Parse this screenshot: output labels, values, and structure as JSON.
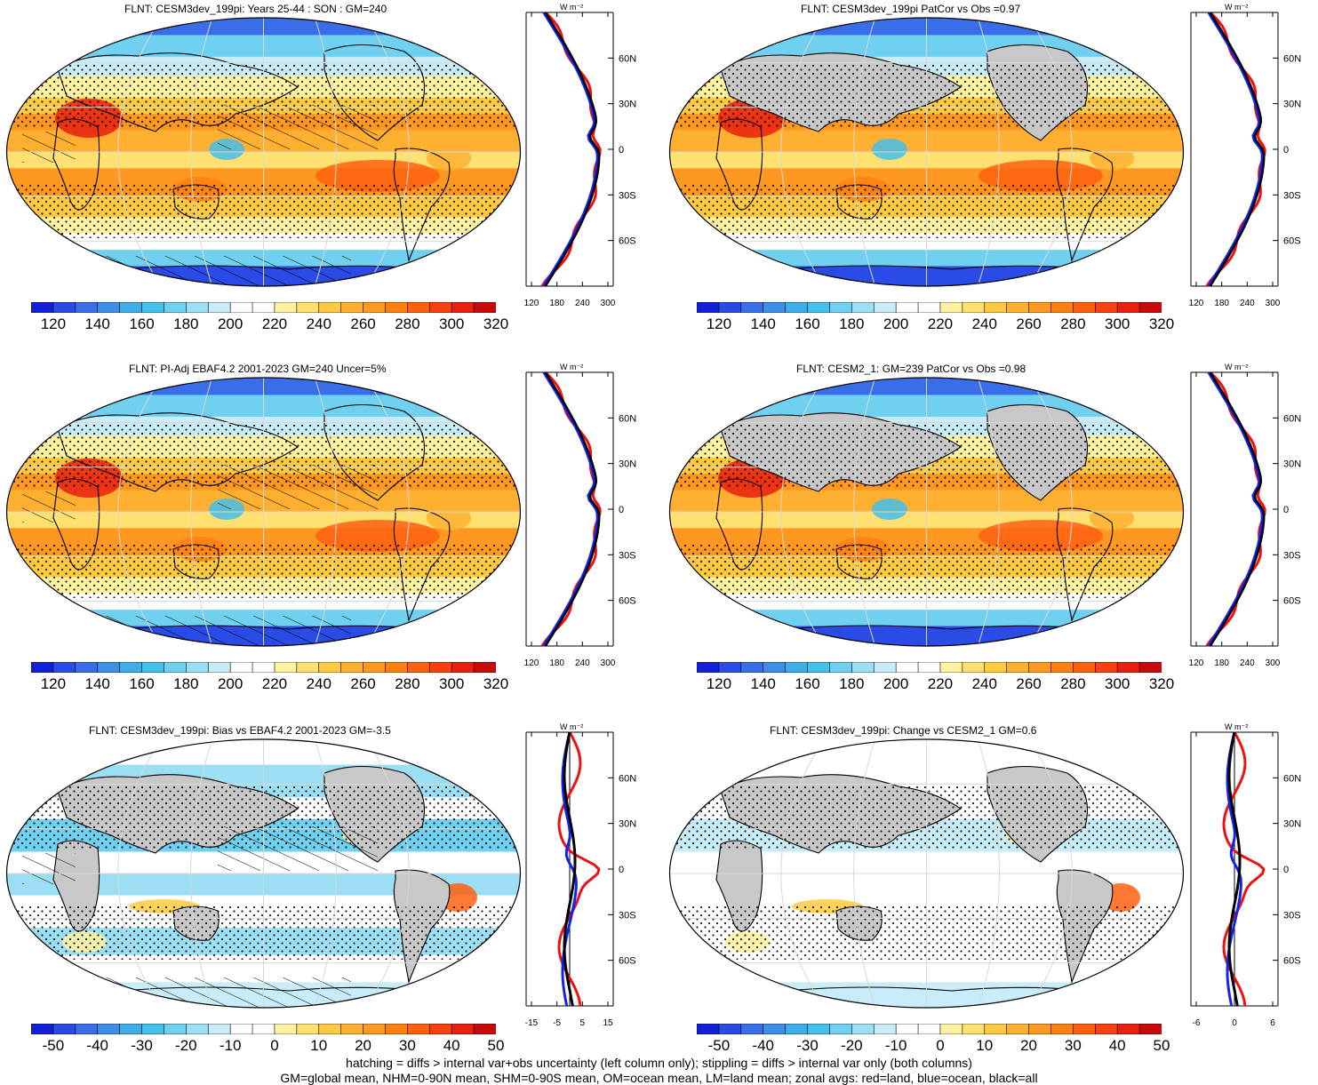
{
  "panels": [
    {
      "title": "FLNT: CESM3dev_199pi: Years 25-44 : SON : GM=240",
      "kind": "abs",
      "colorbar_labels": [
        "120",
        "140",
        "160",
        "180",
        "200",
        "220",
        "240",
        "260",
        "280",
        "300",
        "320"
      ],
      "zonal_xticks": [
        "120",
        "180",
        "240",
        "300"
      ]
    },
    {
      "title": "FLNT: CESM3dev_199pi PatCor vs Obs =0.97",
      "kind": "abs",
      "colorbar_labels": [
        "120",
        "140",
        "160",
        "180",
        "200",
        "220",
        "240",
        "260",
        "280",
        "300",
        "320"
      ],
      "zonal_xticks": [
        "120",
        "180",
        "240",
        "300"
      ]
    },
    {
      "title": "FLNT: PI-Adj EBAF4.2 2001-2023 GM=240 Uncer=5%",
      "kind": "abs",
      "colorbar_labels": [
        "120",
        "140",
        "160",
        "180",
        "200",
        "220",
        "240",
        "260",
        "280",
        "300",
        "320"
      ],
      "zonal_xticks": [
        "120",
        "180",
        "240",
        "300"
      ]
    },
    {
      "title": "FLNT: CESM2_1: GM=239 PatCor vs Obs =0.98",
      "kind": "abs",
      "colorbar_labels": [
        "120",
        "140",
        "160",
        "180",
        "200",
        "220",
        "240",
        "260",
        "280",
        "300",
        "320"
      ],
      "zonal_xticks": [
        "120",
        "180",
        "240",
        "300"
      ]
    },
    {
      "title": "FLNT: CESM3dev_199pi: Bias vs EBAF4.2 2001-2023  GM=-3.5",
      "kind": "diff",
      "colorbar_labels": [
        "-50",
        "-40",
        "-30",
        "-20",
        "-10",
        "0",
        "10",
        "20",
        "30",
        "40",
        "50"
      ],
      "zonal_xticks": [
        "-15",
        "-5",
        "5",
        "15"
      ]
    },
    {
      "title": "FLNT: CESM3dev_199pi: Change vs CESM2_1 GM=0.6",
      "kind": "diff",
      "colorbar_labels": [
        "-50",
        "-40",
        "-30",
        "-20",
        "-10",
        "0",
        "10",
        "20",
        "30",
        "40",
        "50"
      ],
      "zonal_xticks": [
        "-6",
        "0",
        "6"
      ]
    }
  ],
  "zonal_units": "W m⁻²",
  "lat_labels": [
    "60N",
    "30N",
    "0",
    "30S",
    "60S"
  ],
  "footer": {
    "line1": "hatching = diffs > internal var+obs uncertainty (left column only); stippling = diffs > internal var only (both columns)",
    "line2": "GM=global mean, NHM=0-90N mean, SHM=0-90S mean, OM=ocean mean, LM=land mean; zonal avgs: red=land, blue=ocean, black=all"
  },
  "colors": {
    "abs_scale": [
      "#1420d8",
      "#2a4be6",
      "#3a6ee8",
      "#3e8ee8",
      "#3faee8",
      "#44c0ec",
      "#6fd0f0",
      "#9cdff5",
      "#c8ecf8",
      "#ffffff",
      "#ffffff",
      "#fff2a0",
      "#ffe070",
      "#ffca40",
      "#ffb030",
      "#ff9820",
      "#ff8010",
      "#ff6010",
      "#f84010",
      "#e82010",
      "#c80a0a"
    ],
    "diff_scale": [
      "#1420d8",
      "#2a4be6",
      "#3a6ee8",
      "#3e8ee8",
      "#3faee8",
      "#44c0ec",
      "#6fd0f0",
      "#9cdff5",
      "#c8ecf8",
      "#ffffff",
      "#ffffff",
      "#fff2a0",
      "#ffe070",
      "#ffca40",
      "#ffb030",
      "#ff9820",
      "#ff8010",
      "#ff6010",
      "#f84010",
      "#e82010",
      "#c80a0a"
    ],
    "land_line": "#000000",
    "missing": "#c8c8c8",
    "zonal_land": "#ee1111",
    "zonal_ocean": "#1122ee",
    "zonal_all": "#000000"
  }
}
